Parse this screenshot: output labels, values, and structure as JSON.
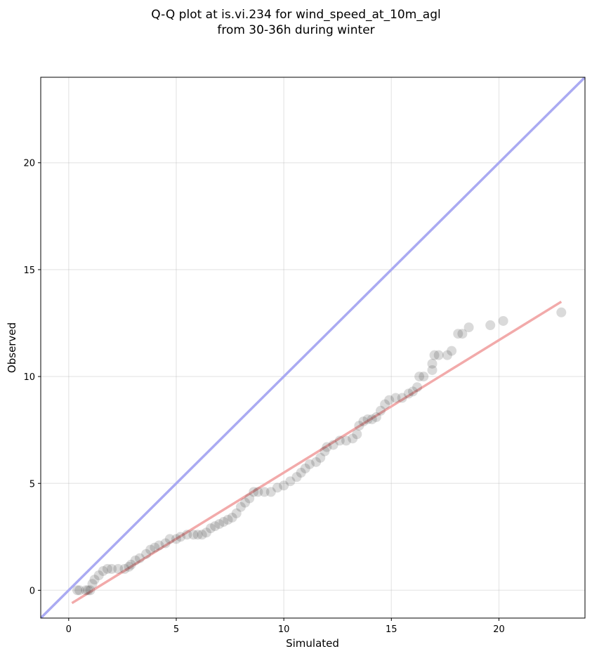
{
  "chart_data": {
    "type": "scatter",
    "title_line1": "Q-Q plot at is.vi.234 for wind_speed_at_10m_agl",
    "title_line2": "from 30-36h during winter",
    "xlabel": "Simulated",
    "ylabel": "Observed",
    "xlim": [
      -1.3,
      24.0
    ],
    "ylim": [
      -1.3,
      24.0
    ],
    "xticks": [
      0,
      5,
      10,
      15,
      20
    ],
    "yticks": [
      0,
      5,
      10,
      15,
      20
    ],
    "grid": true,
    "colors": {
      "points": "#333333",
      "identity_line": "#aaaaf2",
      "fit_line": "#f2aaaa"
    },
    "identity_line": {
      "slope": 1,
      "intercept": 0
    },
    "fit_line": {
      "x": [
        0.15,
        22.9
      ],
      "y": [
        -0.6,
        13.5
      ]
    },
    "points": [
      [
        0.4,
        0.0
      ],
      [
        0.5,
        0.0
      ],
      [
        0.8,
        0.0
      ],
      [
        0.9,
        0.0
      ],
      [
        1.0,
        0.0
      ],
      [
        1.1,
        0.3
      ],
      [
        1.2,
        0.5
      ],
      [
        1.4,
        0.7
      ],
      [
        1.6,
        0.9
      ],
      [
        1.8,
        1.0
      ],
      [
        2.0,
        1.0
      ],
      [
        2.3,
        1.0
      ],
      [
        2.6,
        1.0
      ],
      [
        2.8,
        1.1
      ],
      [
        2.9,
        1.2
      ],
      [
        3.1,
        1.4
      ],
      [
        3.3,
        1.5
      ],
      [
        3.6,
        1.7
      ],
      [
        3.8,
        1.9
      ],
      [
        4.0,
        2.0
      ],
      [
        4.2,
        2.1
      ],
      [
        4.5,
        2.2
      ],
      [
        4.7,
        2.4
      ],
      [
        5.0,
        2.4
      ],
      [
        5.2,
        2.5
      ],
      [
        5.5,
        2.6
      ],
      [
        5.8,
        2.6
      ],
      [
        6.0,
        2.6
      ],
      [
        6.2,
        2.6
      ],
      [
        6.4,
        2.7
      ],
      [
        6.6,
        2.9
      ],
      [
        6.8,
        3.0
      ],
      [
        7.0,
        3.1
      ],
      [
        7.2,
        3.2
      ],
      [
        7.4,
        3.3
      ],
      [
        7.6,
        3.4
      ],
      [
        7.8,
        3.6
      ],
      [
        8.0,
        3.9
      ],
      [
        8.2,
        4.1
      ],
      [
        8.4,
        4.3
      ],
      [
        8.6,
        4.6
      ],
      [
        8.8,
        4.6
      ],
      [
        9.1,
        4.6
      ],
      [
        9.4,
        4.6
      ],
      [
        9.7,
        4.8
      ],
      [
        10.0,
        4.9
      ],
      [
        10.3,
        5.1
      ],
      [
        10.6,
        5.3
      ],
      [
        10.8,
        5.5
      ],
      [
        11.0,
        5.7
      ],
      [
        11.2,
        5.9
      ],
      [
        11.5,
        6.0
      ],
      [
        11.7,
        6.2
      ],
      [
        11.9,
        6.5
      ],
      [
        12.0,
        6.7
      ],
      [
        12.3,
        6.8
      ],
      [
        12.6,
        7.0
      ],
      [
        12.9,
        7.0
      ],
      [
        13.2,
        7.1
      ],
      [
        13.4,
        7.3
      ],
      [
        13.5,
        7.7
      ],
      [
        13.7,
        7.9
      ],
      [
        13.9,
        8.0
      ],
      [
        14.1,
        8.0
      ],
      [
        14.3,
        8.1
      ],
      [
        14.5,
        8.4
      ],
      [
        14.7,
        8.7
      ],
      [
        14.9,
        8.9
      ],
      [
        15.2,
        9.0
      ],
      [
        15.5,
        9.0
      ],
      [
        15.8,
        9.2
      ],
      [
        16.0,
        9.3
      ],
      [
        16.2,
        9.5
      ],
      [
        16.3,
        10.0
      ],
      [
        16.5,
        10.0
      ],
      [
        16.9,
        10.3
      ],
      [
        16.9,
        10.6
      ],
      [
        17.0,
        11.0
      ],
      [
        17.2,
        11.0
      ],
      [
        17.6,
        11.0
      ],
      [
        17.8,
        11.2
      ],
      [
        18.1,
        12.0
      ],
      [
        18.3,
        12.0
      ],
      [
        18.6,
        12.3
      ],
      [
        19.6,
        12.4
      ],
      [
        20.2,
        12.6
      ],
      [
        22.9,
        13.0
      ]
    ]
  }
}
